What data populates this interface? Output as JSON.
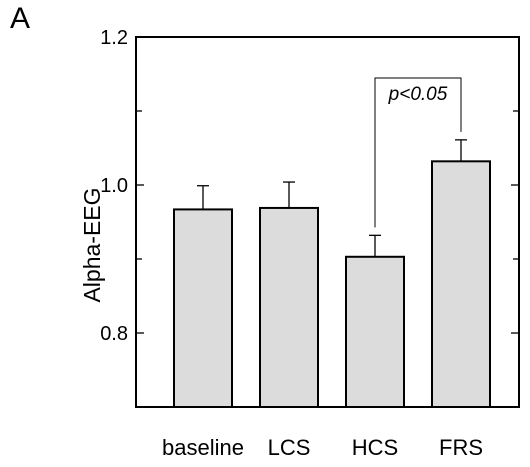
{
  "panel_label": "A",
  "chart_data": {
    "type": "bar",
    "categories": [
      "baseline",
      "LCS",
      "HCS",
      "FRS"
    ],
    "values": [
      0.967,
      0.969,
      0.903,
      1.032
    ],
    "errors": [
      0.032,
      0.035,
      0.029,
      0.029
    ],
    "ylabel": "Alpha-EEG",
    "xlabel": "",
    "ylim": [
      0.7,
      1.2
    ],
    "yticks": [
      0.8,
      1.0,
      1.2
    ],
    "ytick_labels": [
      "0.8",
      "1.0",
      "1.2"
    ],
    "minor_yticks": [
      0.9,
      1.1
    ],
    "annotation": {
      "text": "p<0.05",
      "between": [
        "HCS",
        "FRS"
      ]
    },
    "grid": false,
    "colors": {
      "bar_fill": "#dcdcdc",
      "stroke": "#000000"
    }
  }
}
